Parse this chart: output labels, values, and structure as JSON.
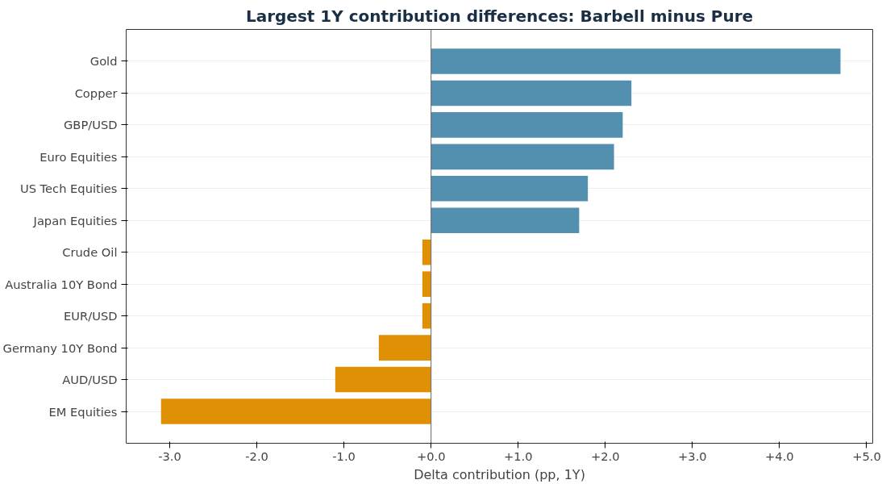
{
  "chart_data": {
    "type": "bar",
    "orientation": "horizontal",
    "title": "Largest 1Y contribution differences: Barbell minus Pure",
    "xlabel": "Delta contribution (pp, 1Y)",
    "categories": [
      "Gold",
      "Copper",
      "GBP/USD",
      "Euro Equities",
      "US Tech Equities",
      "Japan Equities",
      "Crude Oil",
      "Australia 10Y Bond",
      "EUR/USD",
      "Germany 10Y Bond",
      "AUD/USD",
      "EM Equities"
    ],
    "values": [
      4.7,
      2.3,
      2.2,
      2.1,
      1.8,
      1.7,
      -0.1,
      -0.1,
      -0.1,
      -0.6,
      -1.1,
      -3.1
    ],
    "colors": [
      "#5390b0",
      "#5390b0",
      "#5390b0",
      "#5390b0",
      "#5390b0",
      "#5390b0",
      "#e09004",
      "#e09004",
      "#e09004",
      "#e09004",
      "#e09004",
      "#e09004"
    ],
    "xlim": [
      -3.5,
      5.07
    ],
    "xticks": [
      {
        "value": -3,
        "label": "-3.0"
      },
      {
        "value": -2,
        "label": "-2.0"
      },
      {
        "value": -1,
        "label": "-1.0"
      },
      {
        "value": 0,
        "label": "+0.0"
      },
      {
        "value": 1,
        "label": "+1.0"
      },
      {
        "value": 2,
        "label": "+2.0"
      },
      {
        "value": 3,
        "label": "+3.0"
      },
      {
        "value": 4,
        "label": "+4.0"
      },
      {
        "value": 5,
        "label": "+5.0"
      }
    ],
    "ref_lines": [
      {
        "axis": "x",
        "value": 0,
        "color": "#666666"
      }
    ],
    "grid": "y"
  }
}
